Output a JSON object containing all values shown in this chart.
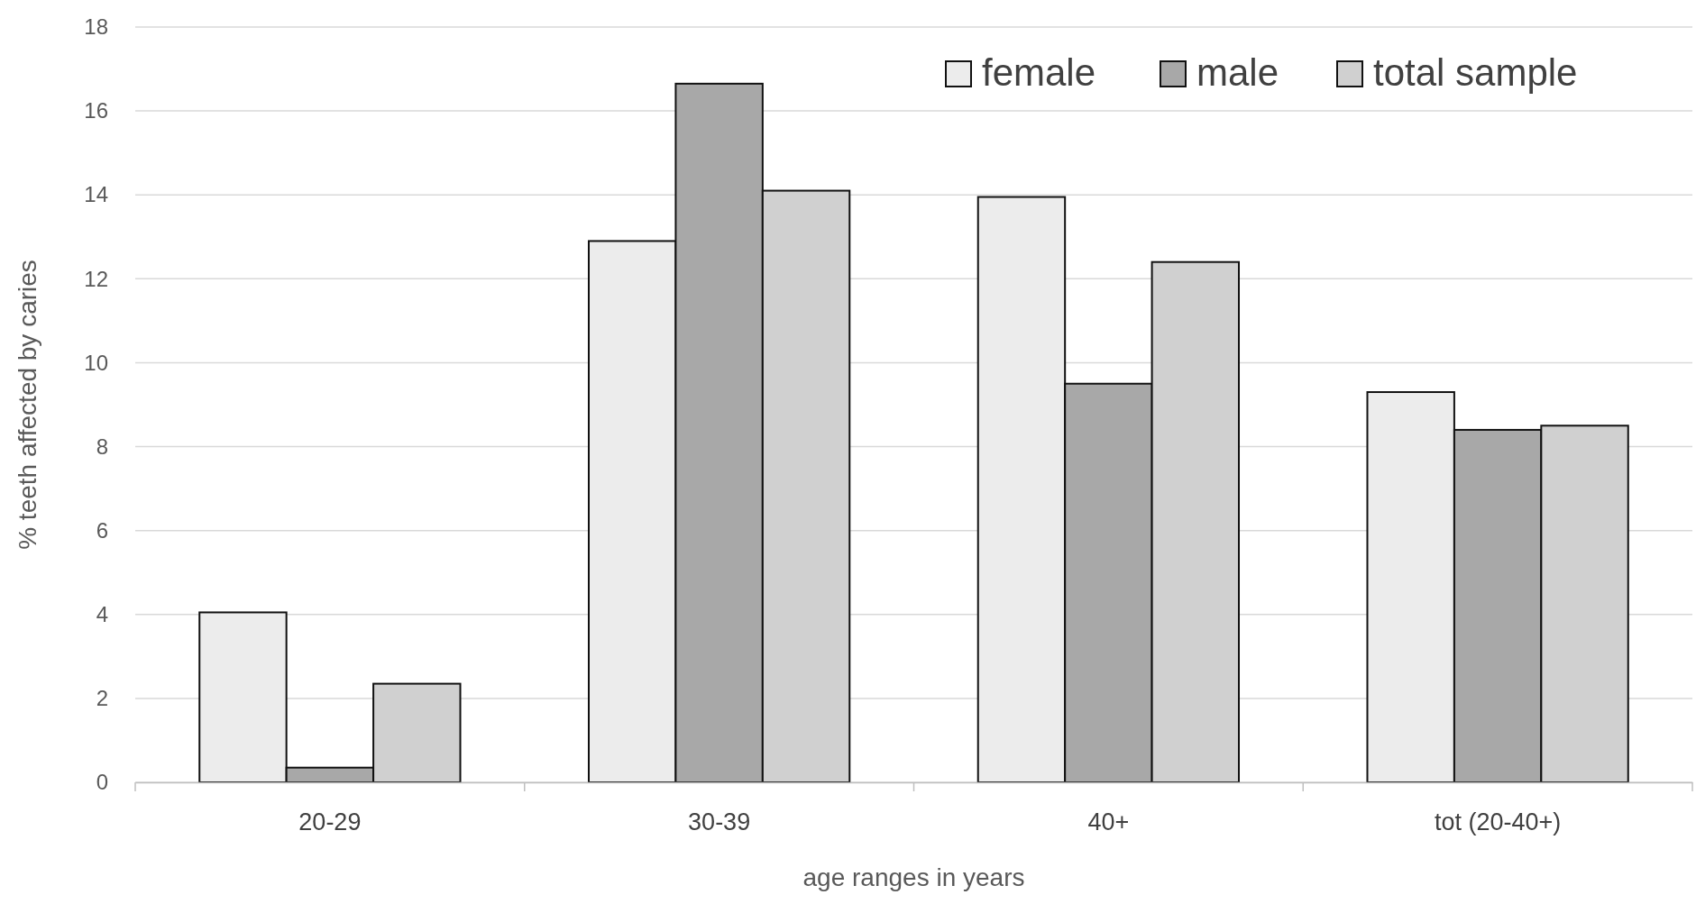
{
  "chart_data": {
    "type": "bar",
    "xlabel": "age ranges in years",
    "ylabel": "% teeth affected by caries",
    "categories": [
      "20-29",
      "30-39",
      "40+",
      "tot (20-40+)"
    ],
    "series": [
      {
        "name": "female",
        "color": "#ececec",
        "values": [
          4.05,
          12.9,
          13.95,
          9.3
        ]
      },
      {
        "name": "male",
        "color": "#a8a8a8",
        "values": [
          0.35,
          16.65,
          9.5,
          8.4
        ]
      },
      {
        "name": "total sample",
        "color": "#d0d0d0",
        "values": [
          2.35,
          14.1,
          12.4,
          8.5
        ]
      }
    ],
    "ylim": [
      0,
      18
    ],
    "yticks": [
      0,
      2,
      4,
      6,
      8,
      10,
      12,
      14,
      16,
      18
    ],
    "grid": "y",
    "legend": "top right"
  }
}
